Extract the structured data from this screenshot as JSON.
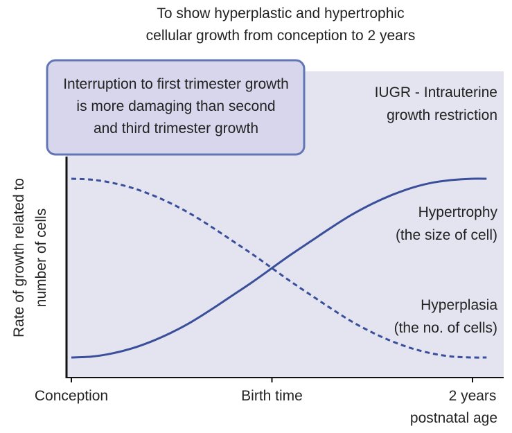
{
  "chart_data": {
    "type": "line",
    "title_lines": [
      "To show hyperplastic and hypertrophic",
      "cellular growth from conception to 2 years"
    ],
    "ylabel_lines": [
      "Rate of growth related to",
      "number of cells"
    ],
    "x_ticks": [
      {
        "label": [
          "Conception"
        ],
        "x": 0
      },
      {
        "label": [
          "Birth time"
        ],
        "x": 0.5
      },
      {
        "label": [
          "2 years",
          "postnatal age"
        ],
        "x": 1
      }
    ],
    "xlim": [
      0,
      1.035
    ],
    "ylim": [
      0,
      1.6
    ],
    "series": [
      {
        "name": "Hypertrophy",
        "label_lines": [
          "Hypertrophy",
          "(the size of cell)"
        ],
        "style": "solid",
        "x": [
          0,
          0.05,
          0.1,
          0.15,
          0.2,
          0.25,
          0.3,
          0.35,
          0.4,
          0.45,
          0.5,
          0.55,
          0.6,
          0.65,
          0.7,
          0.75,
          0.8,
          0.85,
          0.9,
          0.95,
          1.0,
          1.035
        ],
        "values": [
          0.0,
          0.005,
          0.022,
          0.05,
          0.09,
          0.14,
          0.2,
          0.27,
          0.345,
          0.42,
          0.5,
          0.58,
          0.655,
          0.73,
          0.8,
          0.86,
          0.91,
          0.95,
          0.978,
          0.993,
          1.0,
          1.0
        ]
      },
      {
        "name": "Hyperplasia",
        "label_lines": [
          "Hyperplasia",
          "(the no. of cells)"
        ],
        "style": "dashed",
        "x": [
          0,
          0.05,
          0.1,
          0.15,
          0.2,
          0.25,
          0.3,
          0.35,
          0.4,
          0.45,
          0.5,
          0.55,
          0.6,
          0.65,
          0.7,
          0.75,
          0.8,
          0.85,
          0.9,
          0.95,
          1.0,
          1.035
        ],
        "values": [
          1.0,
          0.995,
          0.978,
          0.95,
          0.91,
          0.86,
          0.8,
          0.73,
          0.655,
          0.58,
          0.5,
          0.42,
          0.345,
          0.27,
          0.2,
          0.14,
          0.09,
          0.05,
          0.022,
          0.005,
          0.0,
          0.0
        ]
      }
    ],
    "annotations": {
      "callout_lines": [
        "Interruption to first trimester growth",
        "is more damaging than second",
        "and third trimester growth"
      ],
      "iugr_lines": [
        "IUGR - Intrauterine",
        "growth restriction"
      ]
    },
    "colors": {
      "line": "#3a4f9a",
      "plot_bg": "#e4e3f0",
      "callout_fill": "#d7d6ec",
      "callout_border": "#6276b5",
      "axis": "#111111"
    }
  }
}
